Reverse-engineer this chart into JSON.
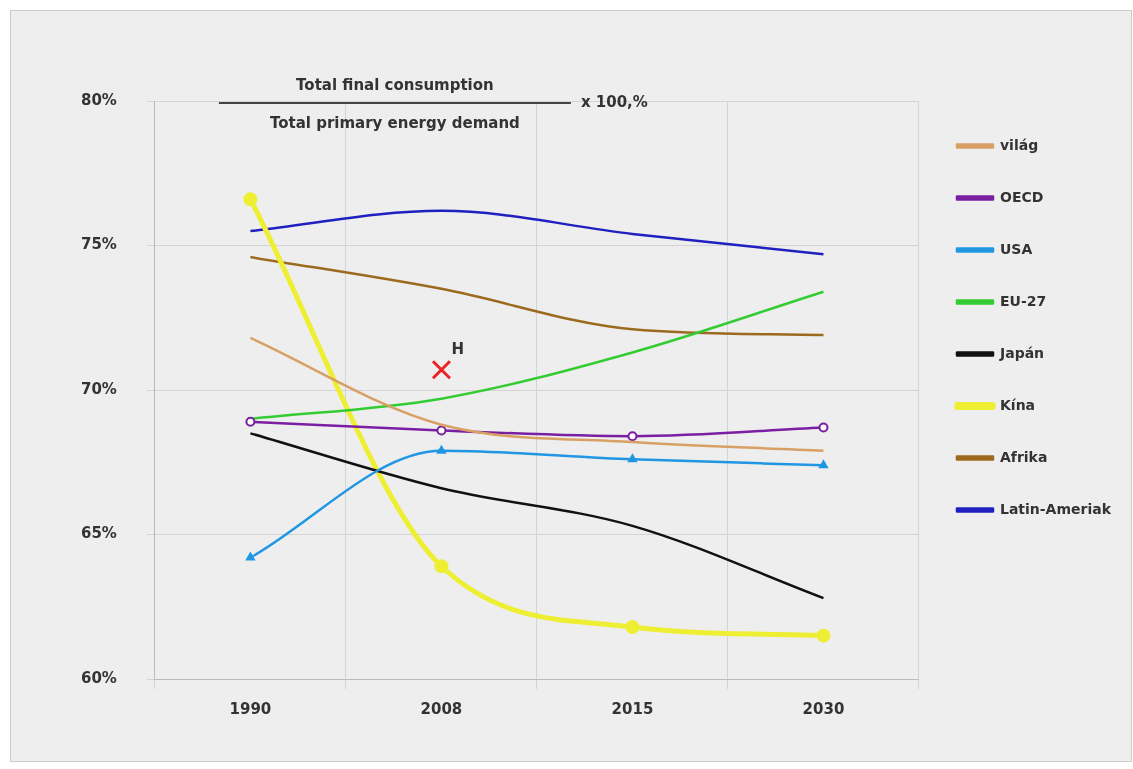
{
  "chart_data": {
    "type": "line",
    "title": "Total final consumption",
    "subtitle": "Total primary energy demand",
    "annotations": [
      "x 100,%",
      {
        "text": "H",
        "x": "2008",
        "y": 70.7
      }
    ],
    "categories": [
      "1990",
      "2008",
      "2015",
      "2030"
    ],
    "ylim": [
      60,
      80
    ],
    "yticks": [
      {
        "value": 60,
        "label": "60%"
      },
      {
        "value": 65,
        "label": "65%"
      },
      {
        "value": 70,
        "label": "70%"
      },
      {
        "value": 75,
        "label": "75%"
      },
      {
        "value": 80,
        "label": "80%"
      }
    ],
    "grid": true,
    "legend": "right",
    "marker": "none",
    "line_style": "solid",
    "series": [
      {
        "name": "világ",
        "color": "#d9a066",
        "values": [
          71.8,
          68.8,
          68.2,
          67.9
        ]
      },
      {
        "name": "OECD",
        "color": "#7b1fa2",
        "marker": "circle",
        "values": [
          68.9,
          68.6,
          68.4,
          68.7
        ]
      },
      {
        "name": "USA",
        "color": "#2196e3",
        "marker": "triangle",
        "values": [
          64.2,
          67.9,
          67.6,
          67.4
        ]
      },
      {
        "name": "EU-27",
        "color": "#33cc33",
        "values": [
          69.0,
          69.7,
          71.3,
          73.4
        ]
      },
      {
        "name": "Japán",
        "color": "#111111",
        "values": [
          68.5,
          66.6,
          65.3,
          62.8
        ]
      },
      {
        "name": "Kína",
        "color": "#eeee33",
        "marker": "circle",
        "values": [
          76.6,
          63.9,
          61.8,
          61.5
        ]
      },
      {
        "name": "Afrika",
        "color": "#9c6a1e",
        "values": [
          74.6,
          73.5,
          72.1,
          71.9
        ]
      },
      {
        "name": "Latin-Ameriak",
        "color": "#2020c0",
        "values": [
          75.5,
          76.2,
          75.4,
          74.7
        ]
      },
      {
        "type": "scatter",
        "color": "#ee2222",
        "marker": "cross",
        "values": [
          null,
          70.7,
          null,
          null
        ]
      }
    ]
  }
}
